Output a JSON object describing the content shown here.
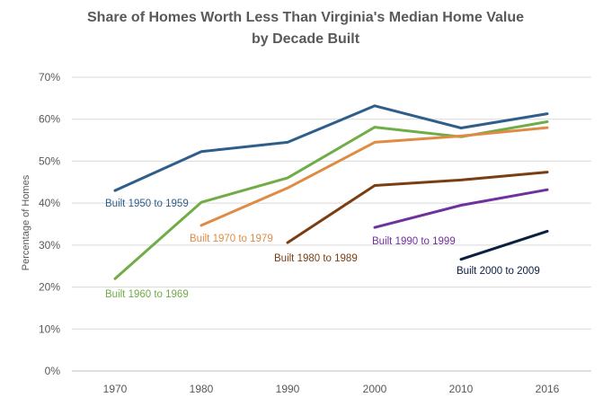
{
  "chart_data": {
    "type": "line",
    "title_line1": "Share of Homes Worth Less Than Virginia's Median Home Value",
    "title_line2": "by Decade Built",
    "xlabel": "",
    "ylabel": "Percentage of Homes",
    "x": [
      1970,
      1980,
      1990,
      2000,
      2010,
      2016
    ],
    "x_tick_labels": [
      "1970",
      "1980",
      "1990",
      "2000",
      "2010",
      "2016"
    ],
    "ylim": [
      0,
      70
    ],
    "y_tick_labels": [
      "0%",
      "10%",
      "20%",
      "30%",
      "40%",
      "50%",
      "60%",
      "70%"
    ],
    "grid": true,
    "legend": "none (series labeled directly on chart)",
    "series": [
      {
        "name": "Built 1950 to 1959",
        "color": "#2e5e8a",
        "x": [
          1970,
          1980,
          1990,
          2000,
          2010,
          2016
        ],
        "values": [
          43.0,
          52.3,
          54.5,
          63.2,
          57.9,
          61.3
        ]
      },
      {
        "name": "Built 1960 to 1969",
        "color": "#70ad47",
        "x": [
          1970,
          1980,
          1990,
          2000,
          2010,
          2016
        ],
        "values": [
          22.0,
          40.2,
          46.0,
          58.1,
          55.8,
          59.4
        ]
      },
      {
        "name": "Built 1970 to 1979",
        "color": "#e08b45",
        "x": [
          1980,
          1990,
          2000,
          2010,
          2016
        ],
        "values": [
          34.7,
          43.6,
          54.5,
          56.0,
          58.0
        ]
      },
      {
        "name": "Built 1980 to 1989",
        "color": "#7a3e12",
        "x": [
          1990,
          2000,
          2010,
          2016
        ],
        "values": [
          30.6,
          44.2,
          45.5,
          47.4
        ]
      },
      {
        "name": "Built 1990 to 1999",
        "color": "#7030a0",
        "x": [
          2000,
          2010,
          2016
        ],
        "values": [
          34.2,
          39.5,
          43.2
        ]
      },
      {
        "name": "Built 2000 to 2009",
        "color": "#0b1f40",
        "x": [
          2010,
          2016
        ],
        "values": [
          26.6,
          33.3
        ]
      }
    ]
  }
}
